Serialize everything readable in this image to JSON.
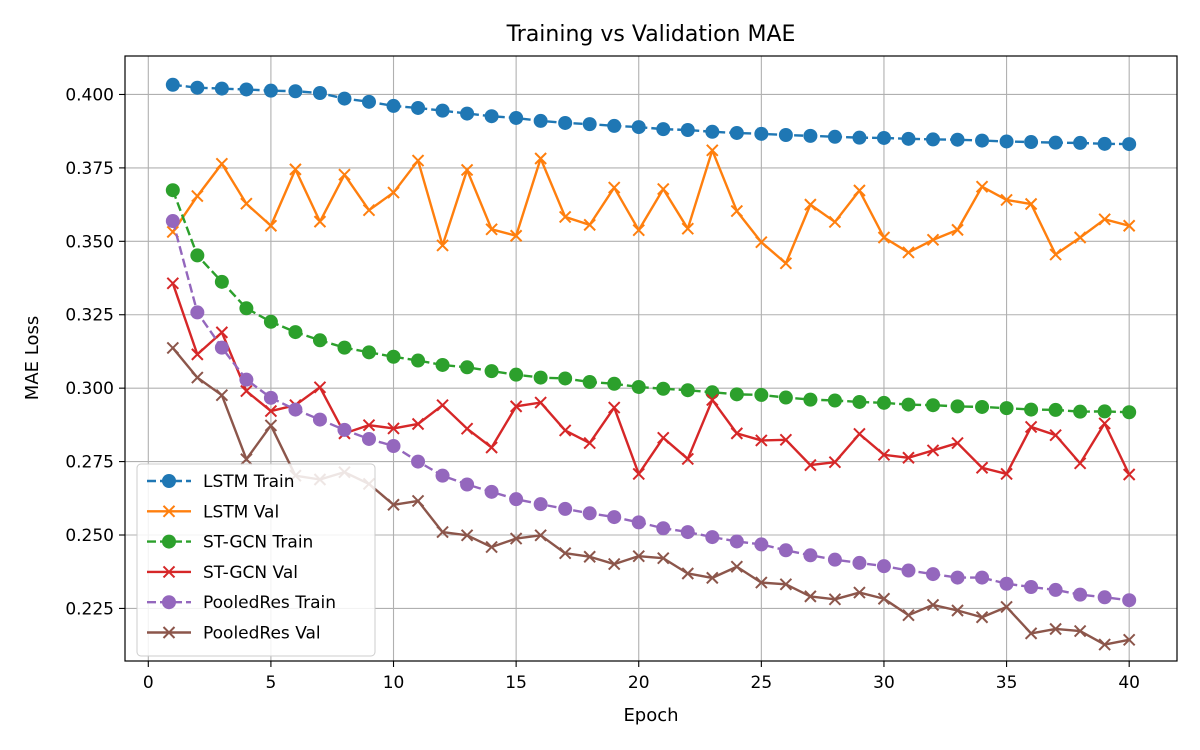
{
  "chart_data": {
    "type": "line",
    "title": "Training vs Validation MAE",
    "xlabel": "Epoch",
    "ylabel": "MAE Loss",
    "xlim": [
      -0.95,
      41.95
    ],
    "ylim": [
      0.2071,
      0.4131
    ],
    "xticks": [
      "0",
      "5",
      "10",
      "15",
      "20",
      "25",
      "30",
      "35",
      "40"
    ],
    "yticks": [
      "0.225",
      "0.250",
      "0.275",
      "0.300",
      "0.325",
      "0.350",
      "0.375",
      "0.400"
    ],
    "grid": true,
    "legend_position": "lower-left",
    "x": [
      1,
      2,
      3,
      4,
      5,
      6,
      7,
      8,
      9,
      10,
      11,
      12,
      13,
      14,
      15,
      16,
      17,
      18,
      19,
      20,
      21,
      22,
      23,
      24,
      25,
      26,
      27,
      28,
      29,
      30,
      31,
      32,
      33,
      34,
      35,
      36,
      37,
      38,
      39,
      40
    ],
    "series": [
      {
        "name": "LSTM Train",
        "color": "#1f77b4",
        "style": "dashed",
        "marker": "circle",
        "values": [
          0.4033,
          0.4023,
          0.402,
          0.4017,
          0.4013,
          0.4011,
          0.4005,
          0.3986,
          0.3975,
          0.3961,
          0.3954,
          0.3945,
          0.3935,
          0.3926,
          0.392,
          0.391,
          0.3903,
          0.3899,
          0.3893,
          0.3889,
          0.3882,
          0.3879,
          0.3873,
          0.3869,
          0.3866,
          0.3862,
          0.3859,
          0.3856,
          0.3853,
          0.3852,
          0.3849,
          0.3847,
          0.3846,
          0.3843,
          0.384,
          0.3838,
          0.3836,
          0.3835,
          0.3832,
          0.3831
        ]
      },
      {
        "name": "LSTM Val",
        "color": "#ff7f0e",
        "style": "solid",
        "marker": "x",
        "values": [
          0.3532,
          0.3654,
          0.3764,
          0.3628,
          0.3553,
          0.3745,
          0.3567,
          0.3727,
          0.3606,
          0.3666,
          0.3775,
          0.3486,
          0.3743,
          0.3541,
          0.3519,
          0.3782,
          0.3583,
          0.3556,
          0.3683,
          0.3538,
          0.3678,
          0.3543,
          0.381,
          0.3603,
          0.3497,
          0.3425,
          0.3625,
          0.3566,
          0.3673,
          0.3513,
          0.3462,
          0.3505,
          0.3539,
          0.3686,
          0.3641,
          0.3627,
          0.3455,
          0.3513,
          0.3575,
          0.3553
        ]
      },
      {
        "name": "ST-GCN Train",
        "color": "#2ca02c",
        "style": "dashed",
        "marker": "circle",
        "values": [
          0.3674,
          0.3452,
          0.3362,
          0.3272,
          0.3226,
          0.3191,
          0.3163,
          0.3138,
          0.3122,
          0.3107,
          0.3094,
          0.3079,
          0.3071,
          0.3058,
          0.3046,
          0.3036,
          0.3033,
          0.3021,
          0.3015,
          0.3004,
          0.2998,
          0.2993,
          0.2986,
          0.2979,
          0.2977,
          0.2968,
          0.2961,
          0.2958,
          0.2953,
          0.295,
          0.2944,
          0.2942,
          0.2938,
          0.2936,
          0.2932,
          0.2927,
          0.2926,
          0.292,
          0.2921,
          0.2918
        ]
      },
      {
        "name": "ST-GCN Val",
        "color": "#d62728",
        "style": "solid",
        "marker": "x",
        "values": [
          0.3357,
          0.3115,
          0.319,
          0.299,
          0.2922,
          0.2942,
          0.3003,
          0.2846,
          0.2874,
          0.2863,
          0.2878,
          0.2942,
          0.2862,
          0.2798,
          0.2938,
          0.2951,
          0.2856,
          0.2813,
          0.2934,
          0.2708,
          0.2831,
          0.2759,
          0.296,
          0.2846,
          0.2822,
          0.2824,
          0.2738,
          0.2748,
          0.2844,
          0.2773,
          0.2763,
          0.2788,
          0.2813,
          0.2729,
          0.2708,
          0.2868,
          0.284,
          0.2744,
          0.288,
          0.2706
        ]
      },
      {
        "name": "PooledRes Train",
        "color": "#9467bd",
        "style": "dashed",
        "marker": "circle",
        "values": [
          0.3569,
          0.3258,
          0.3138,
          0.3029,
          0.2967,
          0.2927,
          0.2893,
          0.2858,
          0.2827,
          0.2803,
          0.275,
          0.2702,
          0.2672,
          0.2647,
          0.2622,
          0.2605,
          0.2589,
          0.2574,
          0.2561,
          0.2543,
          0.2523,
          0.251,
          0.2493,
          0.2478,
          0.2468,
          0.2448,
          0.2431,
          0.2416,
          0.2405,
          0.2394,
          0.2379,
          0.2367,
          0.2355,
          0.2355,
          0.2334,
          0.2323,
          0.2313,
          0.2297,
          0.2288,
          0.2278
        ]
      },
      {
        "name": "PooledRes Val",
        "color": "#8c564b",
        "style": "solid",
        "marker": "x",
        "values": [
          0.3137,
          0.3036,
          0.2976,
          0.2758,
          0.2873,
          0.2702,
          0.2689,
          0.2714,
          0.2674,
          0.2603,
          0.2616,
          0.251,
          0.2499,
          0.2459,
          0.2488,
          0.2499,
          0.2438,
          0.2426,
          0.2401,
          0.2428,
          0.2421,
          0.2369,
          0.2354,
          0.2392,
          0.2338,
          0.2332,
          0.2291,
          0.2281,
          0.2304,
          0.2283,
          0.2227,
          0.2262,
          0.2243,
          0.222,
          0.2255,
          0.2165,
          0.218,
          0.2173,
          0.2127,
          0.2143
        ]
      }
    ]
  }
}
